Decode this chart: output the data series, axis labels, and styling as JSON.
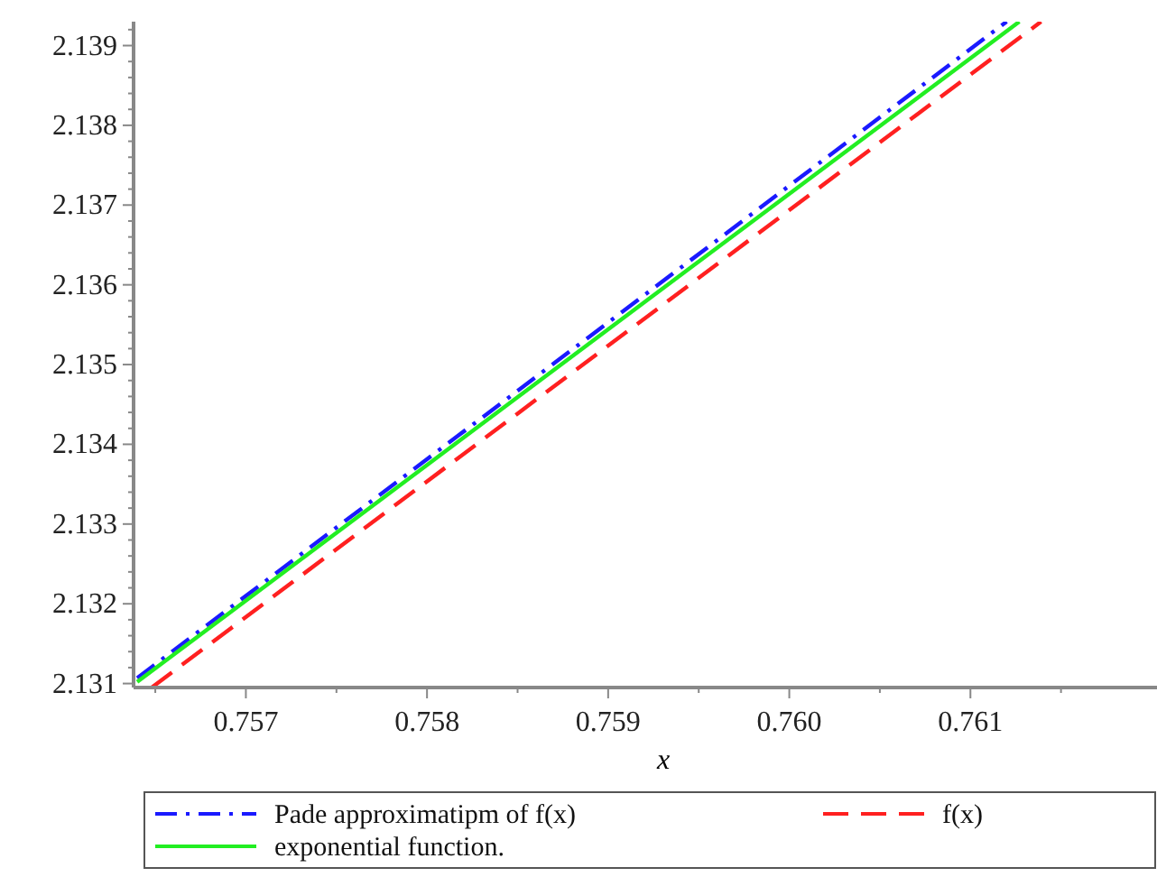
{
  "chart_data": {
    "type": "line",
    "xlabel": "x",
    "xlim": [
      0.75638,
      0.76203
    ],
    "ylim": [
      2.13095,
      2.1393
    ],
    "xticks": [
      {
        "value": 0.7565,
        "label": null
      },
      0.757,
      {
        "value": 0.7575,
        "label": null
      },
      0.758,
      {
        "value": 0.7585,
        "label": null
      },
      0.759,
      {
        "value": 0.7595,
        "label": null
      },
      "0.760",
      {
        "value": 0.7605,
        "label": null
      },
      0.761,
      {
        "value": 0.7615,
        "label": null
      }
    ],
    "yticks": [
      2.131,
      {
        "value": 2.1312,
        "label": null
      },
      {
        "value": 2.1314,
        "label": null
      },
      {
        "value": 2.1316,
        "label": null
      },
      {
        "value": 2.1318,
        "label": null
      },
      2.132,
      {
        "value": 2.1322,
        "label": null
      },
      {
        "value": 2.1324,
        "label": null
      },
      {
        "value": 2.1326,
        "label": null
      },
      {
        "value": 2.1328,
        "label": null
      },
      2.133,
      {
        "value": 2.1332,
        "label": null
      },
      {
        "value": 2.1334,
        "label": null
      },
      {
        "value": 2.1336,
        "label": null
      },
      {
        "value": 2.1338,
        "label": null
      },
      2.134,
      {
        "value": 2.1342,
        "label": null
      },
      {
        "value": 2.1344,
        "label": null
      },
      {
        "value": 2.1346,
        "label": null
      },
      {
        "value": 2.1348,
        "label": null
      },
      2.135,
      {
        "value": 2.1352,
        "label": null
      },
      {
        "value": 2.1354,
        "label": null
      },
      {
        "value": 2.1356,
        "label": null
      },
      {
        "value": 2.1358,
        "label": null
      },
      2.136,
      {
        "value": 2.1362,
        "label": null
      },
      {
        "value": 2.1364,
        "label": null
      },
      {
        "value": 2.1366,
        "label": null
      },
      {
        "value": 2.1368,
        "label": null
      },
      2.137,
      {
        "value": 2.1372,
        "label": null
      },
      {
        "value": 2.1374,
        "label": null
      },
      {
        "value": 2.1376,
        "label": null
      },
      {
        "value": 2.1378,
        "label": null
      },
      2.138,
      {
        "value": 2.1382,
        "label": null
      },
      {
        "value": 2.1384,
        "label": null
      },
      {
        "value": 2.1386,
        "label": null
      },
      {
        "value": 2.1388,
        "label": null
      },
      2.139,
      {
        "value": 2.1392,
        "label": null
      }
    ],
    "grid": false,
    "legend": "bottom",
    "marker": "none",
    "series": [
      {
        "name": "Pade approximatipm of f(x)",
        "color": "#1a1aff",
        "line_style": "dashdot",
        "x": [
          0.7564,
          0.7612
        ],
        "values": [
          2.13107,
          2.1393
        ]
      },
      {
        "name": "f(x)",
        "color": "#ff2020",
        "line_style": "dashed",
        "x": [
          0.75648,
          0.76139
        ],
        "values": [
          2.13095,
          2.1393
        ]
      },
      {
        "name": "exponential function.",
        "color": "#22ee22",
        "line_style": "solid",
        "x": [
          0.7564,
          0.76127
        ],
        "values": [
          2.13102,
          2.1393
        ]
      }
    ]
  }
}
